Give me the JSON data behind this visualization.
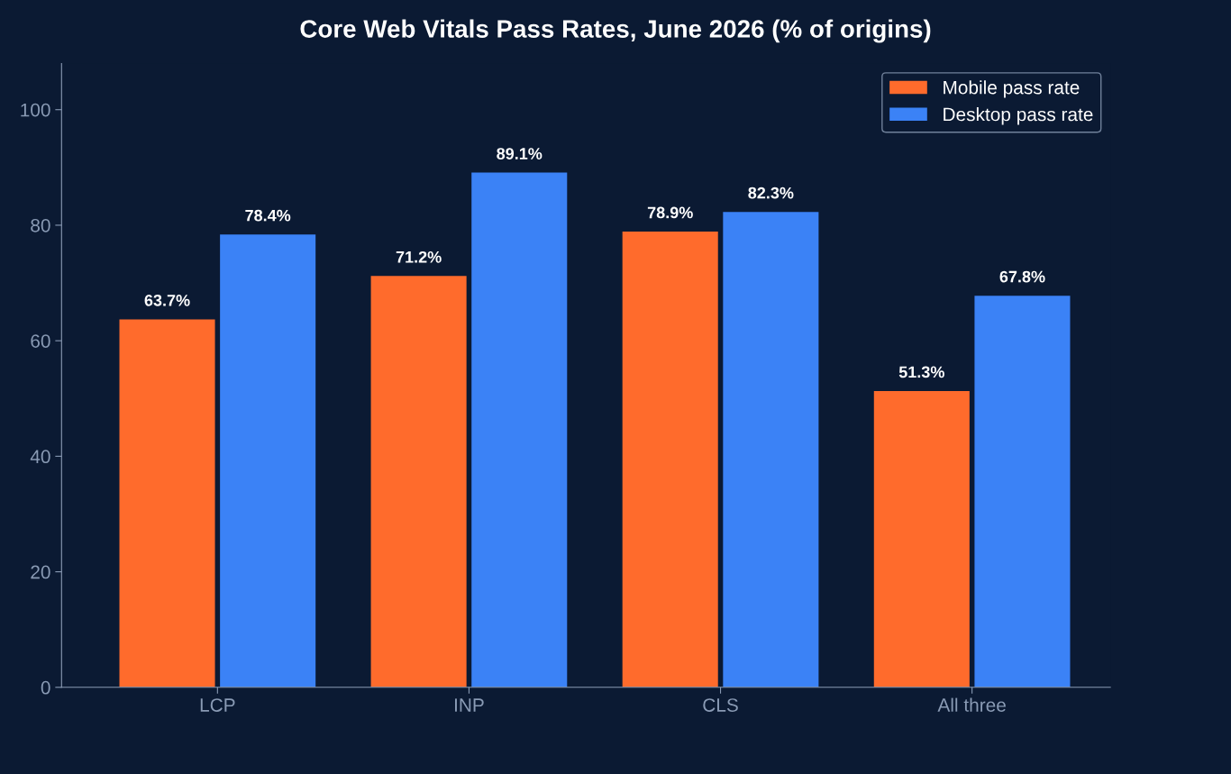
{
  "chart_data": {
    "type": "bar",
    "title": "Core Web Vitals Pass Rates, June 2026 (% of origins)",
    "categories": [
      "LCP",
      "INP",
      "CLS",
      "All three"
    ],
    "series": [
      {
        "name": "Mobile pass rate",
        "color": "#ff6b2c",
        "values": [
          63.7,
          71.2,
          78.9,
          51.3
        ]
      },
      {
        "name": "Desktop pass rate",
        "color": "#3b82f6",
        "values": [
          78.4,
          89.1,
          82.3,
          67.8
        ]
      }
    ],
    "value_labels": [
      [
        "63.7%",
        "71.2%",
        "78.9%",
        "51.3%"
      ],
      [
        "78.4%",
        "89.1%",
        "82.3%",
        "67.8%"
      ]
    ],
    "ylim": [
      0,
      108
    ],
    "yticks": [
      0,
      20,
      40,
      60,
      80,
      100
    ],
    "grid": false,
    "legend": "top right"
  }
}
